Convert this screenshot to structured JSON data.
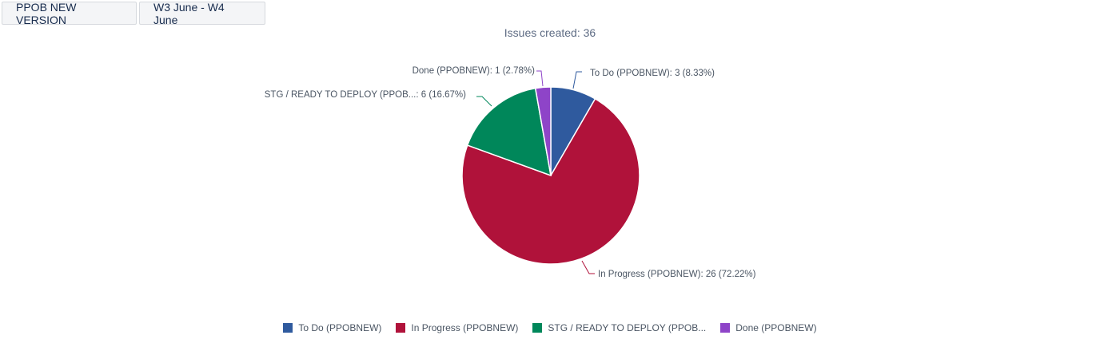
{
  "toolbar": {
    "filter_label": "PPOB NEW VERSION",
    "range_label": "W3 June - W4 June"
  },
  "chart_data": {
    "type": "pie",
    "title": "Issues created: 36",
    "total": 36,
    "slices": [
      {
        "name": "To Do (PPOBNEW)",
        "value": 3,
        "percent": "8.33%",
        "label": "To Do (PPOBNEW): 3 (8.33%)",
        "legend": "To Do (PPOBNEW)",
        "color": "#2f5a9e"
      },
      {
        "name": "In Progress (PPOBNEW)",
        "value": 26,
        "percent": "72.22%",
        "label": "In Progress (PPOBNEW): 26 (72.22%)",
        "legend": "In Progress (PPOBNEW)",
        "color": "#b0123a"
      },
      {
        "name": "STG / READY TO DEPLOY (PPOBNEW)",
        "value": 6,
        "percent": "16.67%",
        "label": "STG / READY TO DEPLOY (PPOB...: 6 (16.67%)",
        "legend": "STG / READY TO DEPLOY (PPOB...",
        "color": "#00875a"
      },
      {
        "name": "Done (PPOBNEW)",
        "value": 1,
        "percent": "2.78%",
        "label": "Done (PPOBNEW): 1 (2.78%)",
        "legend": "Done (PPOBNEW)",
        "color": "#8e44c8"
      }
    ],
    "legend_position": "bottom"
  }
}
